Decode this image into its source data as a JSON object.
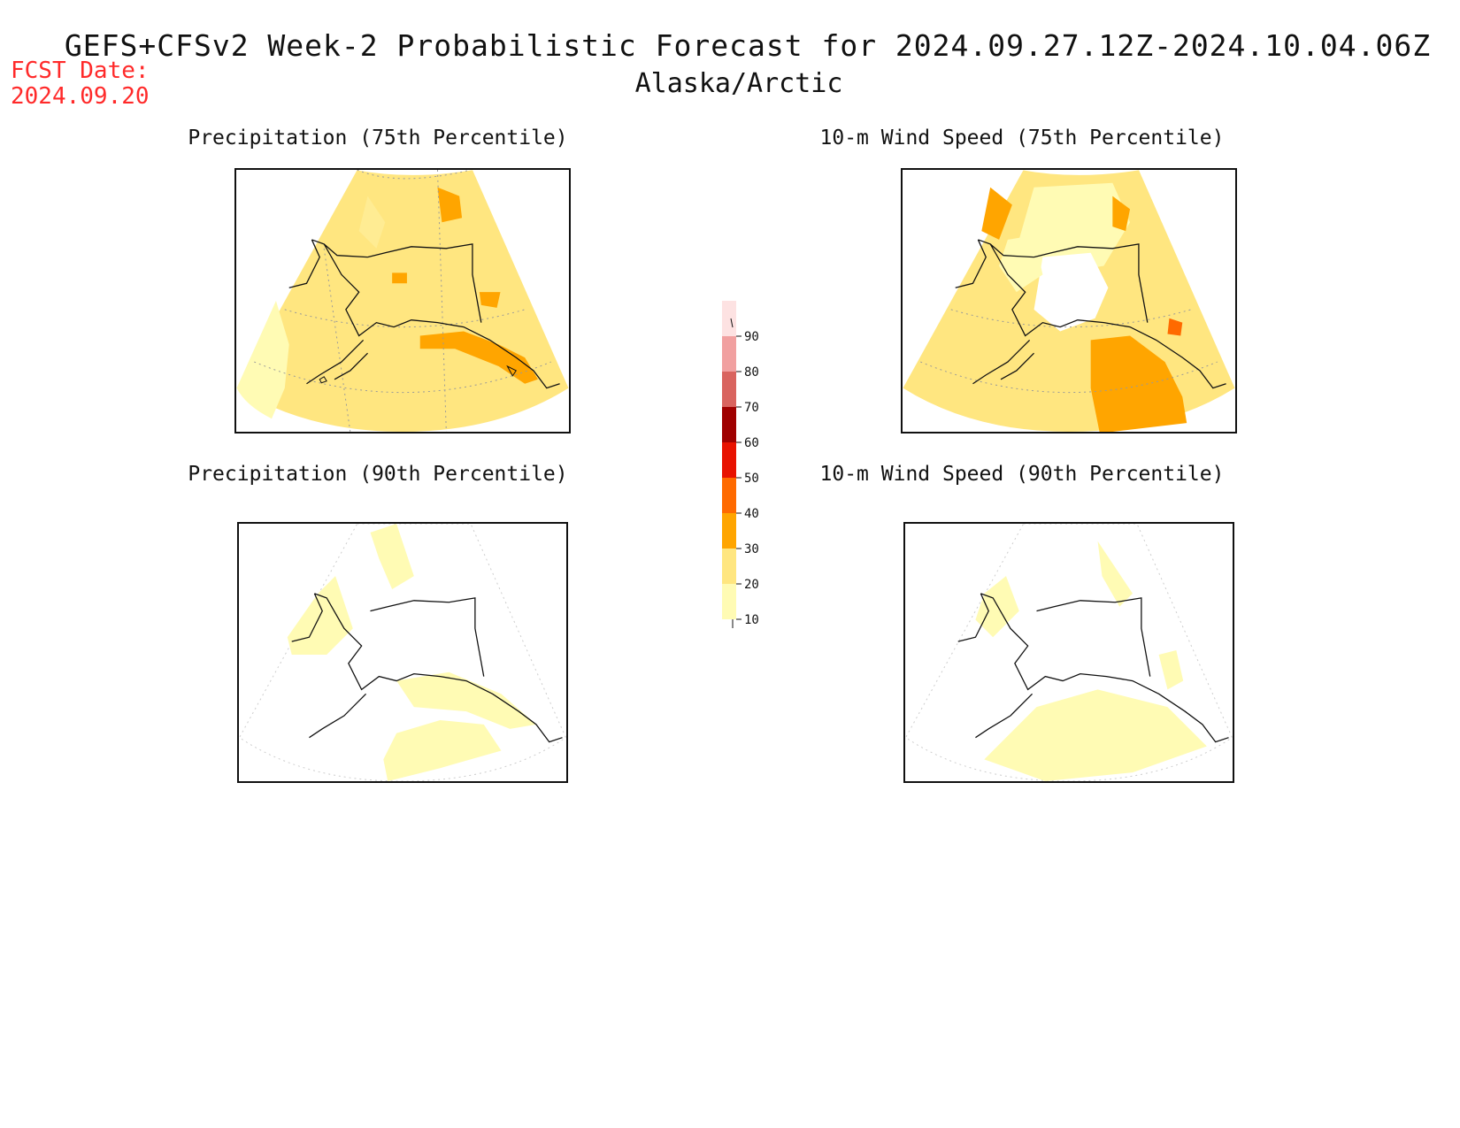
{
  "header": {
    "fcst_label": "FCST Date:",
    "fcst_date": "2024.09.20",
    "title": "GEFS+CFSv2 Week-2 Probabilistic Forecast for 2024.09.27.12Z-2024.10.04.06Z",
    "subtitle": "Alaska/Arctic"
  },
  "panels": {
    "p75": {
      "title": "Precipitation (75th Percentile)",
      "background_level": "20-30"
    },
    "p90": {
      "title": "Precipitation (90th Percentile)",
      "background_level": "below 10"
    },
    "w75": {
      "title": "10-m Wind Speed (75th Percentile)",
      "background_level": "20-30"
    },
    "w90": {
      "title": "10-m Wind Speed (90th Percentile)",
      "background_level": "below 10"
    }
  },
  "legend": {
    "levels": [
      {
        "value": "10",
        "color": "#fffbb4"
      },
      {
        "value": "20",
        "color": "#ffe680"
      },
      {
        "value": "30",
        "color": "#ffa500"
      },
      {
        "value": "40",
        "color": "#ff6a00"
      },
      {
        "value": "50",
        "color": "#e81200"
      },
      {
        "value": "60",
        "color": "#a00000"
      },
      {
        "value": "70",
        "color": "#d9645f"
      },
      {
        "value": "80",
        "color": "#f1a0a0"
      },
      {
        "value": "90",
        "color": "#fde2e2"
      }
    ]
  }
}
